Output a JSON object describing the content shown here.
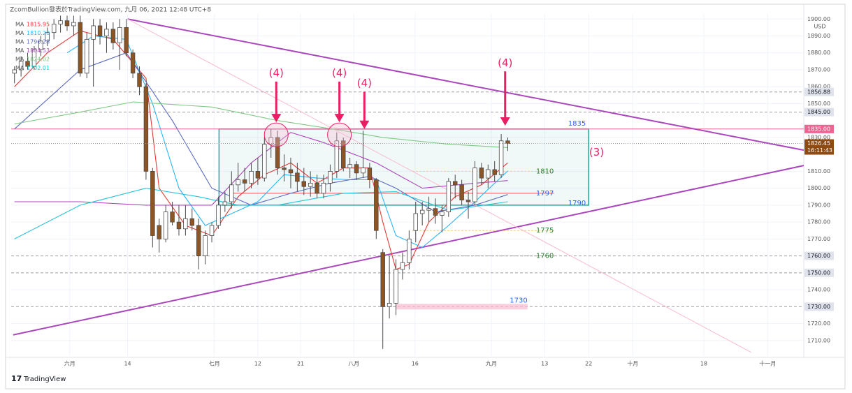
{
  "chart_data": {
    "type": "candlestick",
    "header": "ZcomBullion發表於TradingView.com, 九月 06, 2021 12:48 UTC+8",
    "currency": "USD",
    "footer": "TradingView",
    "xlim": [
      -0.5,
      120
    ],
    "ylim": [
      1700,
      1903
    ],
    "xticks": [
      {
        "value": 8.4,
        "label": "六月"
      },
      {
        "value": 17.2,
        "label": "14"
      },
      {
        "value": 30.4,
        "label": "七月"
      },
      {
        "value": 37,
        "label": "12"
      },
      {
        "value": 43.5,
        "label": "21"
      },
      {
        "value": 51.6,
        "label": "八月"
      },
      {
        "value": 60.9,
        "label": "16"
      },
      {
        "value": 72.5,
        "label": "九月"
      },
      {
        "value": 80.6,
        "label": "13"
      },
      {
        "value": 87.3,
        "label": "22"
      },
      {
        "value": 94,
        "label": "十月"
      },
      {
        "value": 104.8,
        "label": "18"
      },
      {
        "value": 114.5,
        "label": "十一月"
      }
    ],
    "yticks": [
      {
        "value": 1710,
        "label": "1710.00"
      },
      {
        "value": 1720,
        "label": "1720.00"
      },
      {
        "value": 1740,
        "label": "1740.00"
      },
      {
        "value": 1770,
        "label": "1770.00"
      },
      {
        "value": 1780,
        "label": "1780.00"
      },
      {
        "value": 1790,
        "label": "1790.00"
      },
      {
        "value": 1800,
        "label": "1800.00"
      },
      {
        "value": 1810,
        "label": "1810.00"
      },
      {
        "value": 1830,
        "label": "1830.00"
      },
      {
        "value": 1850,
        "label": "1850.00"
      },
      {
        "value": 1860,
        "label": "1860.00"
      },
      {
        "value": 1870,
        "label": "1870.00"
      },
      {
        "value": 1880,
        "label": "1880.00"
      },
      {
        "value": 1890,
        "label": "1890.00"
      },
      {
        "value": 1900,
        "label": "1900.00"
      }
    ],
    "up_color": "#ffffff",
    "down_color": "#8d5524",
    "wick_color": "#4a4a4a",
    "x": [
      0,
      1,
      2,
      3,
      4,
      5,
      6,
      7,
      8,
      9,
      10,
      11,
      12,
      13,
      14,
      15,
      16,
      17,
      18,
      19,
      20,
      21,
      22,
      23,
      24,
      25,
      26,
      27,
      28,
      29,
      30,
      31,
      32,
      33,
      34,
      35,
      36,
      37,
      38,
      39,
      40,
      41,
      42,
      43,
      44,
      45,
      46,
      47,
      48,
      49,
      50,
      51,
      52,
      53,
      54,
      55,
      56,
      57,
      58,
      59,
      60,
      61,
      62,
      63,
      64,
      65,
      66,
      67,
      68,
      69,
      70,
      71,
      72,
      73,
      74,
      75
    ],
    "open": [
      1868,
      1870,
      1875,
      1872,
      1882,
      1887,
      1892,
      1897,
      1899,
      1896,
      1898,
      1868,
      1888,
      1896,
      1890,
      1894,
      1886,
      1895,
      1880,
      1868,
      1860,
      1810,
      1778,
      1770,
      1786,
      1780,
      1776,
      1782,
      1778,
      1760,
      1772,
      1778,
      1790,
      1792,
      1802,
      1805,
      1803,
      1810,
      1806,
      1826,
      1830,
      1812,
      1811,
      1809,
      1804,
      1801,
      1803,
      1797,
      1803,
      1810,
      1828,
      1812,
      1814,
      1809,
      1812,
      1805,
      1762,
      1730,
      1732,
      1752,
      1756,
      1775,
      1785,
      1787,
      1788,
      1784,
      1786,
      1804,
      1802,
      1793,
      1792,
      1812,
      1806,
      1811,
      1808,
      1828
    ],
    "high": [
      1872,
      1878,
      1880,
      1884,
      1890,
      1895,
      1900,
      1902,
      1902,
      1902,
      1902,
      1892,
      1900,
      1900,
      1898,
      1898,
      1900,
      1900,
      1882,
      1872,
      1862,
      1812,
      1782,
      1790,
      1792,
      1790,
      1790,
      1788,
      1782,
      1775,
      1780,
      1795,
      1798,
      1810,
      1815,
      1812,
      1815,
      1818,
      1830,
      1835,
      1834,
      1820,
      1818,
      1815,
      1812,
      1810,
      1808,
      1808,
      1814,
      1833,
      1830,
      1818,
      1816,
      1834,
      1815,
      1806,
      1764,
      1760,
      1758,
      1762,
      1775,
      1792,
      1792,
      1795,
      1794,
      1790,
      1806,
      1808,
      1805,
      1798,
      1816,
      1815,
      1814,
      1816,
      1832,
      1830
    ],
    "low": [
      1862,
      1866,
      1870,
      1870,
      1878,
      1884,
      1888,
      1892,
      1893,
      1890,
      1866,
      1865,
      1860,
      1885,
      1880,
      1882,
      1870,
      1878,
      1865,
      1855,
      1805,
      1765,
      1762,
      1768,
      1778,
      1772,
      1772,
      1775,
      1752,
      1755,
      1768,
      1776,
      1786,
      1788,
      1798,
      1798,
      1800,
      1802,
      1804,
      1818,
      1808,
      1804,
      1800,
      1798,
      1796,
      1795,
      1794,
      1794,
      1798,
      1806,
      1810,
      1806,
      1805,
      1806,
      1800,
      1770,
      1705,
      1723,
      1725,
      1746,
      1752,
      1768,
      1778,
      1780,
      1779,
      1774,
      1783,
      1794,
      1790,
      1782,
      1790,
      1802,
      1800,
      1804,
      1806,
      1822
    ],
    "close": [
      1870,
      1875,
      1872,
      1882,
      1887,
      1892,
      1897,
      1899,
      1896,
      1898,
      1868,
      1888,
      1896,
      1890,
      1894,
      1886,
      1895,
      1880,
      1868,
      1860,
      1810,
      1772,
      1770,
      1786,
      1780,
      1776,
      1782,
      1778,
      1760,
      1772,
      1778,
      1790,
      1792,
      1802,
      1805,
      1803,
      1810,
      1806,
      1826,
      1830,
      1812,
      1811,
      1809,
      1804,
      1801,
      1803,
      1797,
      1803,
      1810,
      1828,
      1812,
      1814,
      1809,
      1812,
      1805,
      1775,
      1730,
      1732,
      1752,
      1756,
      1770,
      1785,
      1787,
      1788,
      1784,
      1786,
      1804,
      1802,
      1793,
      1792,
      1812,
      1806,
      1811,
      1808,
      1828,
      1826.45
    ],
    "indicators": [
      {
        "name": "MA",
        "color": "#e53935",
        "last": 1815.95,
        "last_label": "1815.95",
        "x": [
          0,
          5,
          10,
          15,
          20,
          22,
          26,
          30,
          34,
          38,
          42,
          46,
          50,
          54,
          56,
          58,
          60,
          63,
          67,
          71,
          75
        ],
        "values": [
          1860,
          1880,
          1893,
          1888,
          1865,
          1800,
          1778,
          1772,
          1795,
          1808,
          1815,
          1803,
          1812,
          1812,
          1780,
          1752,
          1755,
          1780,
          1795,
          1802,
          1815
        ]
      },
      {
        "name": "MA",
        "color": "#29b6f6",
        "last": 1810.2,
        "last_label": "1810.20",
        "x": [
          8,
          12,
          17,
          21,
          25,
          29,
          33,
          37,
          41,
          46,
          51,
          55,
          58,
          62,
          66,
          70,
          75
        ],
        "values": [
          1880,
          1890,
          1888,
          1850,
          1800,
          1778,
          1785,
          1792,
          1808,
          1806,
          1805,
          1805,
          1772,
          1765,
          1778,
          1792,
          1810.2
        ]
      },
      {
        "name": "MA",
        "color": "#5c6bc0",
        "last": 1796.28,
        "last_label": "1796.28",
        "x": [
          0,
          10,
          17,
          24,
          30,
          36,
          42,
          48,
          54,
          58,
          64,
          70,
          75
        ],
        "values": [
          1835,
          1870,
          1880,
          1840,
          1800,
          1790,
          1797,
          1803,
          1807,
          1800,
          1786,
          1790,
          1796.28
        ]
      },
      {
        "name": "MA",
        "color": "#ab47bc",
        "last": 1804.53,
        "last_label": "1804.53",
        "x": [
          0,
          10,
          20,
          30,
          36,
          42,
          47,
          55,
          62,
          70,
          75
        ],
        "values": [
          1792,
          1792,
          1790,
          1790,
          1815,
          1833,
          1827,
          1815,
          1800,
          1803,
          1804.53
        ]
      },
      {
        "name": "MA",
        "color": "#81c784",
        "last": 1824.02,
        "last_label": "1824.02",
        "x": [
          0,
          10,
          18,
          30,
          40,
          50,
          56,
          66,
          75
        ],
        "values": [
          1838,
          1845,
          1851,
          1848,
          1840,
          1834,
          1830,
          1826,
          1824.02
        ]
      },
      {
        "name": "MA",
        "color": "#26c6da",
        "last": 1792.01,
        "last_label": "1792.01",
        "x": [
          0,
          10,
          20,
          28,
          34,
          40,
          50,
          58,
          66,
          75
        ],
        "values": [
          1770,
          1790,
          1800,
          1795,
          1790,
          1790,
          1797,
          1798,
          1787,
          1792.01
        ]
      }
    ],
    "trend_lines": [
      {
        "color": "#ab47bc",
        "x": [
          17.2,
          120
        ],
        "y": [
          1900,
          1822.5
        ]
      },
      {
        "color": "#ab47bc",
        "x": [
          -0.2,
          120
        ],
        "y": [
          1713.3,
          1813.4
        ]
      },
      {
        "color": "#f8bbd0",
        "x": [
          17.2,
          112
        ],
        "y": [
          1900,
          1703
        ]
      }
    ],
    "zone": {
      "x": [
        31.1,
        87.3
      ],
      "top": 1835,
      "bottom": 1790,
      "color": "#26a69a",
      "label_color": "#2962ff"
    },
    "levels": [
      {
        "value": 1810,
        "color": "#2e7d32",
        "line_color": "#ffcc80",
        "x": [
          60.5,
          82
        ]
      },
      {
        "value": 1797,
        "color": "#2962ff",
        "line_color": "#ef5350",
        "x": [
          33,
          82
        ]
      },
      {
        "value": 1775,
        "color": "#2e7d32",
        "line_color": "#ffcc80",
        "x": [
          60.5,
          82
        ]
      },
      {
        "value": 1760,
        "color": "#2e7d32",
        "line_color": "#9e9e9e",
        "x": [
          62,
          82
        ]
      },
      {
        "value": 1730,
        "color": "#2962ff",
        "line_color": "#f8bbd0",
        "x": [
          58,
          78
        ]
      }
    ],
    "price_badges": [
      {
        "value": 1856.88,
        "label": "1856.88"
      },
      {
        "value": 1845,
        "label": "1845.00"
      },
      {
        "value": 1835,
        "label": "1835.00",
        "color": "#f06292"
      },
      {
        "value": 1760,
        "label": "1760.00"
      },
      {
        "value": 1750,
        "label": "1750.00"
      },
      {
        "value": 1730,
        "label": "1730.00"
      }
    ],
    "last_price": {
      "value": 1826.45,
      "label": "1826.45",
      "countdown": "16:11:43",
      "color": "#8d4a12"
    },
    "annotations": [
      {
        "text": "(4)",
        "x": 39.8,
        "y": 1868,
        "tip": 1839,
        "circled": true
      },
      {
        "text": "(4)",
        "x": 49.4,
        "y": 1868,
        "tip": 1839,
        "circled": true
      },
      {
        "text": "(4)",
        "x": 53.2,
        "y": 1862,
        "tip": 1835,
        "circled": false
      },
      {
        "text": "(4)",
        "x": 74.6,
        "y": 1874,
        "tip": 1837,
        "circled": false
      },
      {
        "text": "(3)",
        "x": 88.5,
        "y": 1821
      }
    ]
  }
}
